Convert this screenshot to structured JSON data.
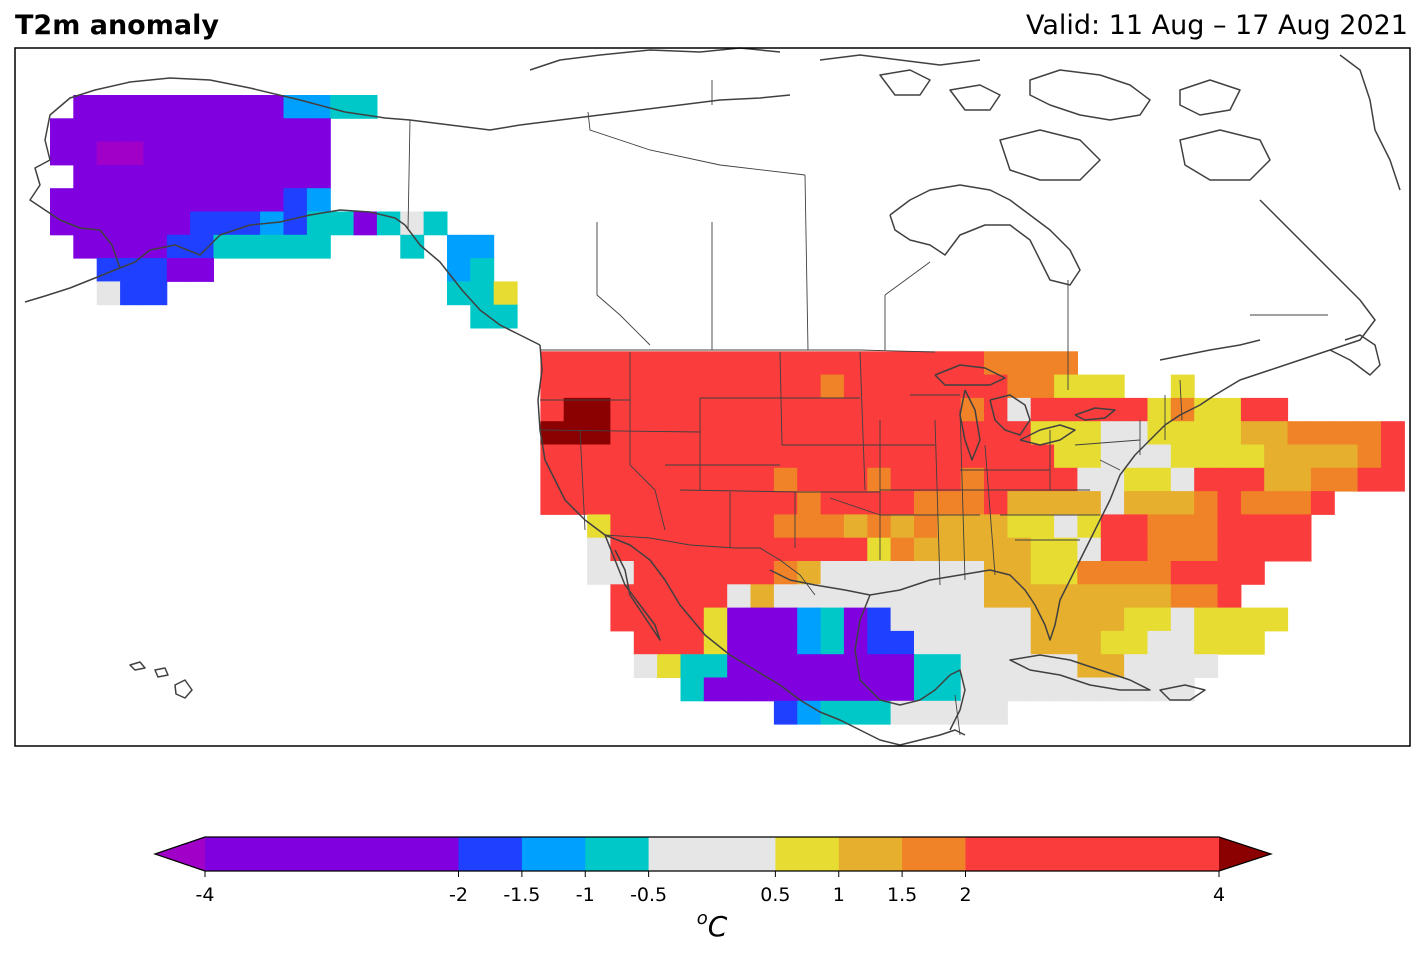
{
  "title": "T2m anomaly",
  "valid_label": "Valid: 11 Aug – 17 Aug 2021",
  "colorbar": {
    "unit_base": "C",
    "unit_sup": "o",
    "extend": "both",
    "bounds": [
      -4,
      -2,
      -1.5,
      -1,
      -0.5,
      0.5,
      1,
      1.5,
      2,
      4
    ],
    "tick_labels": [
      "-4",
      "-2",
      "-1.5",
      "-1",
      "-0.5",
      "0.5",
      "1",
      "1.5",
      "2",
      "4"
    ],
    "colors": [
      "#8000e0",
      "#2040ff",
      "#00a0ff",
      "#00c8c8",
      "#e6e6e6",
      "#e6dc32",
      "#e6af2d",
      "#f08228",
      "#fa3c3c"
    ],
    "under_color": "#a000c8",
    "over_color": "#8b0000"
  }
}
